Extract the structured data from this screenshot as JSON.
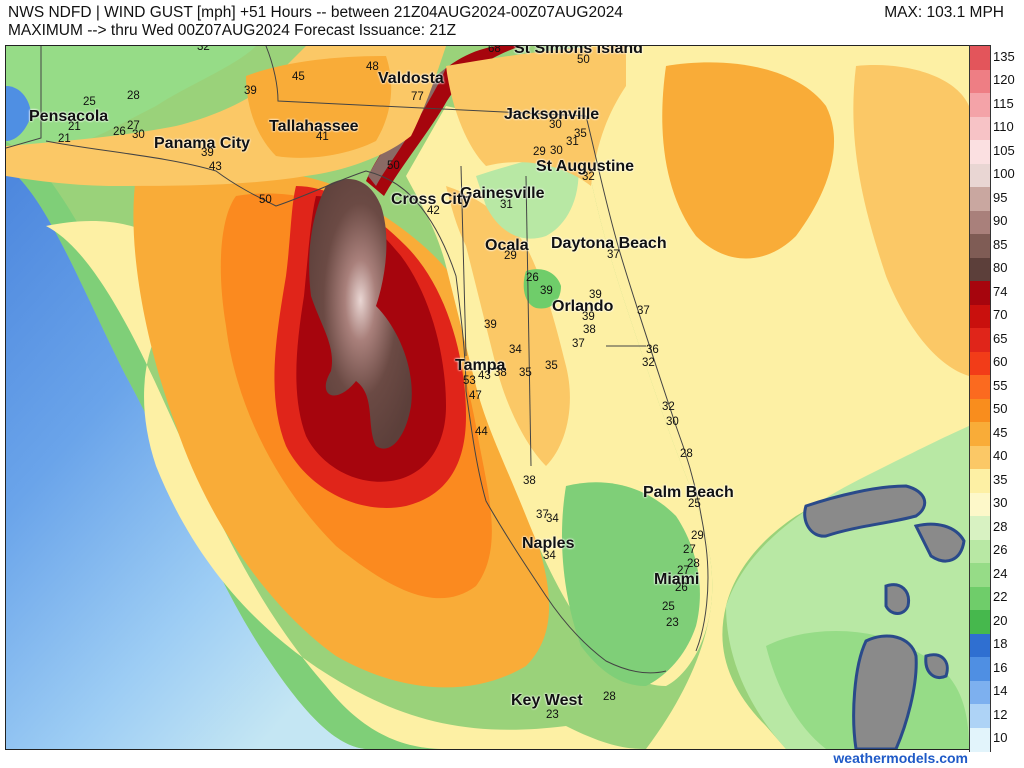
{
  "header": {
    "line1": "NWS NDFD | WIND GUST [mph] +51 Hours -- between 21Z04AUG2024-00Z07AUG2024",
    "line2": "MAXIMUM --> thru Wed 00Z07AUG2024   Forecast Issuance: 21Z",
    "max_label": "MAX: 103.1 MPH"
  },
  "cities": [
    {
      "name": "Pensacola"
    },
    {
      "name": "Panama City"
    },
    {
      "name": "Tallahassee"
    },
    {
      "name": "Valdosta"
    },
    {
      "name": "St Simons Island"
    },
    {
      "name": "Jacksonville"
    },
    {
      "name": "St Augustine"
    },
    {
      "name": "Gainesville"
    },
    {
      "name": "Cross City"
    },
    {
      "name": "Ocala"
    },
    {
      "name": "Daytona Beach"
    },
    {
      "name": "Orlando"
    },
    {
      "name": "Tampa"
    },
    {
      "name": "Palm Beach"
    },
    {
      "name": "Naples"
    },
    {
      "name": "Miami"
    },
    {
      "name": "Key West"
    }
  ],
  "station_values": [
    "32",
    "25",
    "28",
    "21",
    "26",
    "27",
    "21",
    "30",
    "39",
    "43",
    "50",
    "45",
    "39",
    "48",
    "77",
    "68",
    "50",
    "41",
    "30",
    "31",
    "35",
    "29",
    "30",
    "32",
    "50",
    "42",
    "31",
    "29",
    "26",
    "37",
    "39",
    "39",
    "39",
    "38",
    "37",
    "37",
    "36",
    "32",
    "39",
    "34",
    "35",
    "35",
    "53",
    "43",
    "38",
    "44",
    "47",
    "32",
    "30",
    "28",
    "38",
    "37",
    "34",
    "34",
    "25",
    "29",
    "27",
    "28",
    "27",
    "26",
    "25",
    "23",
    "28",
    "23"
  ],
  "colors": {
    "land_green": "#9ad27a",
    "ocean_gradient": [
      "#3b78d8",
      "#7fb2f0",
      "#b8ddf6",
      "#d9f2c8"
    ],
    "brand_link": "#1f5ac7"
  },
  "colorbar": {
    "labels": [
      "135",
      "120",
      "115",
      "110",
      "105",
      "100",
      "95",
      "90",
      "85",
      "80",
      "74",
      "70",
      "65",
      "60",
      "55",
      "50",
      "45",
      "40",
      "35",
      "30",
      "28",
      "26",
      "24",
      "22",
      "20",
      "18",
      "16",
      "14",
      "12",
      "10"
    ],
    "colors": [
      "#e3555b",
      "#ee7e84",
      "#f4a3a8",
      "#f7c3c6",
      "#fbe0e1",
      "#e9d6d3",
      "#c9a7a0",
      "#a9807b",
      "#7f5c55",
      "#5c3f3a",
      "#a6050d",
      "#c9100d",
      "#e0251a",
      "#f23c18",
      "#fb6a1f",
      "#f98d1d",
      "#f9ac38",
      "#fbc866",
      "#fdf0a4",
      "#fdf8c9",
      "#d8f2c2",
      "#b8e8a4",
      "#96dc87",
      "#6fcd6a",
      "#46b84d",
      "#2f6fd1",
      "#4f8fe3",
      "#7db0ef",
      "#aed3f6",
      "#e2f4fb"
    ]
  },
  "credit": "weathermodels.com"
}
